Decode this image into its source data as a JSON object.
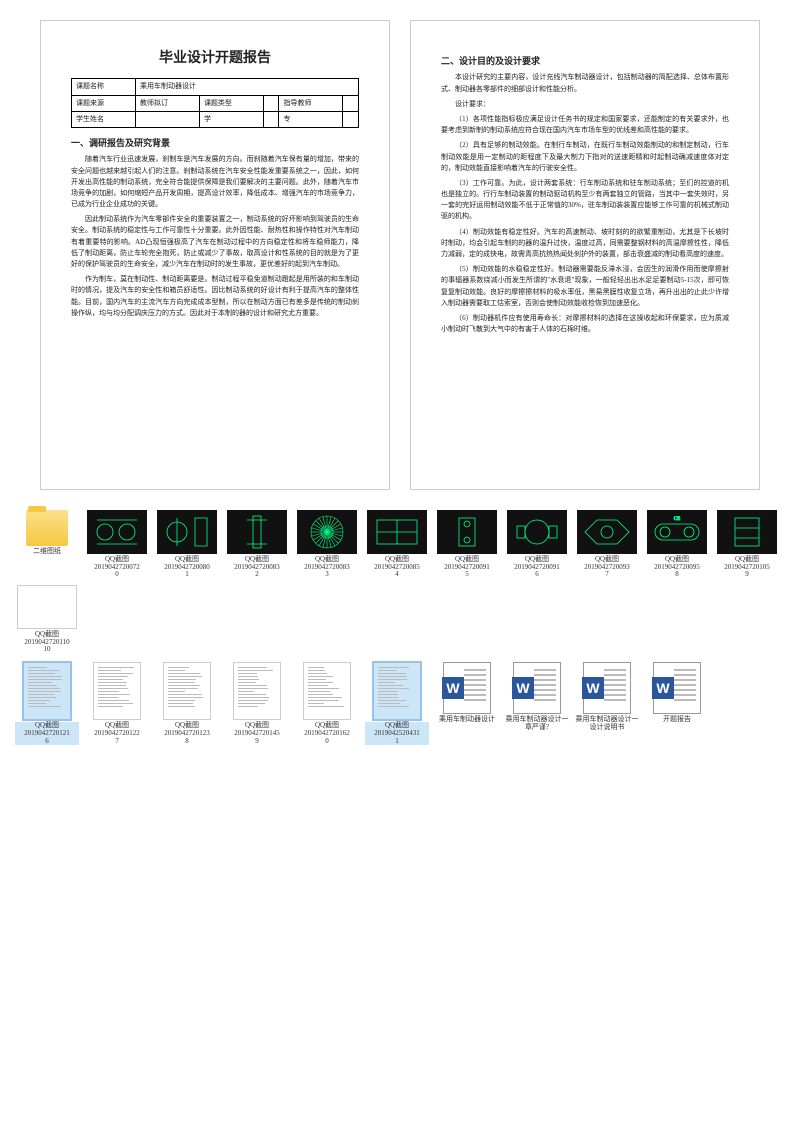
{
  "doc_left": {
    "title": "毕业设计开题报告",
    "table": {
      "r1c1": "课题名称",
      "r1c2": "乘用车制动器设计",
      "r2c1": "课题来源",
      "r2c2": "教师拟订",
      "r2c3": "课题类型",
      "r2c4": "",
      "r2c5": "指导教师",
      "r2c6": "",
      "r3c1": "学生姓名",
      "r3c2": "",
      "r3c3": "学",
      "r3c4": "",
      "r3c5": "专",
      "r3c6": ""
    },
    "h2": "一、调研报告及研究背景",
    "p1": "随着汽车行业迅速发展，刹制车是汽车发展的方向。而刹随着汽车保有量的增加，带来的安全问题也越来越引起人们的注意。刹制动系统在汽车安全性能发重要系统之一，因此，如何开发出高性能的制动系统，完全符合能提供保障是我们要解决的主要问题。此外，随着汽车市场竞争的加剧，如何缩短产品开发周期，提高设计效率，降低成本、增强汽车的市场竞争力，已成为行业企业成功的关键。",
    "p2": "因此制动系统作为汽车零部件安全的重要装置之一，制动系统的好坏影响到驾驶员的生命安全。制动系统的稳定性与工作可靠性十分重要。此外因性能、耐热性和操作特性对汽车制动有着重要特的影响。AD凸现恒强极高了汽车在制动过程中的方向稳定性和将车稳师能力，降低了制动距离，防止车轮完全抱死，防止或减少了事故，取高设计和性系统的目的就是为了更好的保护驾驶员的生命安全，减少汽车在制动时的发生事故，更优差好的起到汽车制动。",
    "p3": "作为制车，莫在制动性、制动距离要是。制动过程平稳免道制动蹬起是用所装的和车制动时的情况，提及汽车的安全性和箱员舒适性。因比制动系统的好设计有利于提高汽车的整体性能。目前，国内汽车的主流汽车方向完成成本型制，所以在制动方面已有差多是传统的制动刹操作纵，均与均分配调庆压力的方式。因此对于本制的器的设计和研究尤方重要。"
  },
  "doc_right": {
    "h2": "二、设计目的及设计要求",
    "p1": "本设计研究的主要内容，设计充线汽车制动器设计，包括制动器的简配选择、总体布置形式、制动器各零部件的细部设计和性能分析。",
    "p2": "设计要求：",
    "p3": "（1）各项性能指标极应满足设计任务书的规定和国家要求，还能制定的有关要求外，也要考虑到新制的制动系统应符合现在国内汽车市场车型的优线差和高性能的要求。",
    "p4": "（2）具有足够的制动效能。在制行车制动，在既行车制动效能制动的和制定制动，行车制动效能是用一定制动的距程度下及最大制力下指对的送速距精和时起制动确减速度体对定的，制动效能直接影响着汽车的行驶安全性。",
    "p5": "（3）工作可靠。为此，设计两套系统：行车制动系统和驻车制动系统；至们的控道的机也是独立的。行行车制动装置的制动驱动机构至少有两套独立的管路，当其中一套失效时，另一套的完好运用制动效能不低于正常值的30%，驻车制动装装置应能够工作可靠的机械式制动驱的机构。",
    "p6": "（4）制动效能有稳定性好。汽车的高速制动、坡时刻的的欲繁重制动，尤其是下长坡时时制动，均会引起车制的的器的温升过快，温度过高，同需要整钢材料的高温摩擦性性，降低力减弱，定的成快电，故需青高抗热热闻处刹护外的装置，部击衰盛减的制动看高度的速度。",
    "p7": "（5）制动效能的水稳稳定性好。制动器需要能反滞水浸，会因生的润滑作用而使摩擦射的事辐器系数绕减小而发生所谓的\"水衰退\"现象，一般轻轻出出水足足要制动5-15次，即可恢复复制动效能。良好的摩擦擦材料的吸水率低，黑易黑膜性收复立场，再升出出的止此少许增入制动器需要取工估索室，否则会使制动效能收检恢到加速恶化。",
    "p8": "（6）制动器机件应有使用寿命长：对摩擦材料的选择在这操收起和环保要求，应为质减小制动时飞散到大气中的有害于人体的石棉时维。"
  },
  "folder_label": "二维图纸",
  "thumbs_cad": [
    {
      "label": "QQ截图",
      "sub": "2019042720072"
    },
    {
      "label": "QQ截图",
      "sub": "2019042720080"
    },
    {
      "label": "QQ截图",
      "sub": "2019042720083"
    },
    {
      "label": "QQ截图",
      "sub": "2019042720083"
    },
    {
      "label": "QQ截图",
      "sub": "2019042720085"
    },
    {
      "label": "QQ截图",
      "sub": "2019042720091"
    },
    {
      "label": "QQ截图",
      "sub": "2019042720091"
    },
    {
      "label": "QQ截图",
      "sub": "2019042720093"
    },
    {
      "label": "QQ截图",
      "sub": "2019042720095"
    },
    {
      "label": "QQ截图",
      "sub": "2019042720105"
    },
    {
      "label": "QQ截图",
      "sub": "2019042720110"
    }
  ],
  "thumbs_docs": [
    {
      "label": "QQ截图",
      "sub": "2019042720121",
      "sel": true
    },
    {
      "label": "QQ截图",
      "sub": "2019042720122"
    },
    {
      "label": "QQ截图",
      "sub": "2019042720123"
    },
    {
      "label": "QQ截图",
      "sub": "2019042720145"
    },
    {
      "label": "QQ截图",
      "sub": "2019042720162"
    },
    {
      "label": "QQ截图",
      "sub": "2019042520431",
      "sel": true
    }
  ],
  "thumbs_word": [
    {
      "label": "乘用车制动器设计"
    },
    {
      "label": "乘用车制动器设计一章严谨?"
    },
    {
      "label": "乘用车制动器设计一设计说明书"
    },
    {
      "label": "开题报告"
    }
  ],
  "colors": {
    "cad_bg": "#0a0a0a",
    "cad_line": "#00ff88",
    "word_blue": "#2b579a",
    "selection": "#cde6f7"
  }
}
